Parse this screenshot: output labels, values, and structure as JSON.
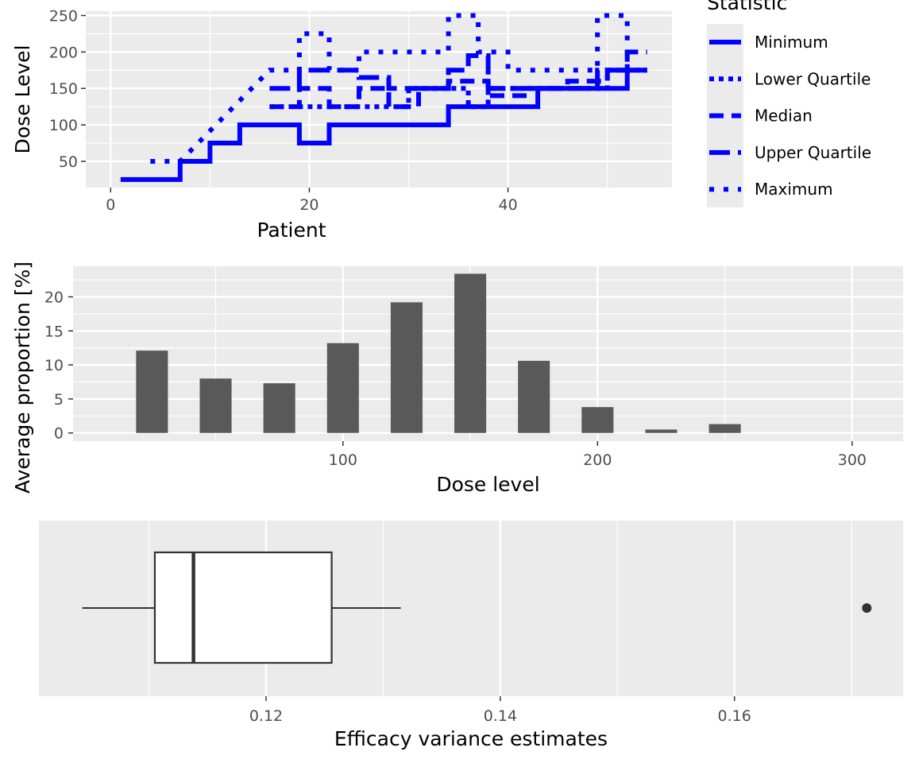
{
  "chart_data": [
    {
      "type": "line",
      "subtype": "step",
      "xlabel": "Patient",
      "ylabel": "Dose Level",
      "xlim": [
        -2.5,
        56.5
      ],
      "ylim": [
        14,
        256
      ],
      "x_ticks": [
        0,
        20,
        40
      ],
      "y_ticks": [
        50,
        100,
        150,
        200,
        250
      ],
      "legend": {
        "title": "Statistic",
        "placement": "right",
        "entries": [
          "Minimum",
          "Lower Quartile",
          "Median",
          "Upper Quartile",
          "Maximum"
        ]
      },
      "color": "#0000ff",
      "series": [
        {
          "name": "Minimum",
          "dash": "solid",
          "points": [
            [
              1,
              25
            ],
            [
              7,
              25
            ],
            [
              7,
              50
            ],
            [
              10,
              50
            ],
            [
              10,
              75
            ],
            [
              13,
              75
            ],
            [
              13,
              100
            ],
            [
              19,
              100
            ],
            [
              19,
              75
            ],
            [
              22,
              75
            ],
            [
              22,
              100
            ],
            [
              34,
              100
            ],
            [
              34,
              125
            ],
            [
              43,
              125
            ],
            [
              43,
              150
            ],
            [
              52,
              150
            ],
            [
              52,
              175
            ],
            [
              54,
              175
            ]
          ]
        },
        {
          "name": "Lower Quartile",
          "dash": "dotted-dense",
          "points": [
            [
              16,
              125
            ],
            [
              22,
              125
            ],
            [
              22,
              125
            ],
            [
              30,
              125
            ],
            [
              30,
              150
            ],
            [
              36,
              150
            ],
            [
              36,
              125
            ],
            [
              38,
              125
            ],
            [
              38,
              150
            ],
            [
              44,
              150
            ],
            [
              44,
              150
            ],
            [
              50,
              150
            ],
            [
              50,
              175
            ],
            [
              54,
              175
            ]
          ]
        },
        {
          "name": "Median",
          "dash": "dashed",
          "points": [
            [
              16,
              125
            ],
            [
              19,
              125
            ],
            [
              19,
              150
            ],
            [
              22,
              150
            ],
            [
              22,
              125
            ],
            [
              25,
              125
            ],
            [
              25,
              150
            ],
            [
              28,
              150
            ],
            [
              28,
              125
            ],
            [
              31,
              125
            ],
            [
              31,
              150
            ],
            [
              34,
              150
            ],
            [
              34,
              160
            ],
            [
              38,
              160
            ],
            [
              38,
              140
            ],
            [
              42,
              140
            ],
            [
              42,
              150
            ],
            [
              46,
              150
            ],
            [
              46,
              160
            ],
            [
              50,
              160
            ],
            [
              50,
              175
            ],
            [
              54,
              175
            ]
          ]
        },
        {
          "name": "Upper Quartile",
          "dash": "long-dash",
          "points": [
            [
              16,
              150
            ],
            [
              19,
              150
            ],
            [
              19,
              175
            ],
            [
              25,
              175
            ],
            [
              25,
              165
            ],
            [
              28,
              165
            ],
            [
              28,
              150
            ],
            [
              34,
              150
            ],
            [
              34,
              175
            ],
            [
              36,
              175
            ],
            [
              36,
              195
            ],
            [
              38,
              195
            ],
            [
              38,
              150
            ],
            [
              42,
              150
            ],
            [
              42,
              150
            ],
            [
              49,
              150
            ],
            [
              49,
              175
            ],
            [
              52,
              175
            ],
            [
              52,
              200
            ],
            [
              54,
              200
            ]
          ]
        },
        {
          "name": "Maximum",
          "dash": "dotted",
          "points": [
            [
              4,
              50
            ],
            [
              7,
              50
            ],
            [
              16,
              175
            ],
            [
              19,
              175
            ],
            [
              19,
              225
            ],
            [
              22,
              225
            ],
            [
              22,
              175
            ],
            [
              25,
              175
            ],
            [
              25,
              200
            ],
            [
              34,
              200
            ],
            [
              34,
              250
            ],
            [
              37,
              250
            ],
            [
              37,
              200
            ],
            [
              40,
              200
            ],
            [
              40,
              175
            ],
            [
              49,
              175
            ],
            [
              49,
              250
            ],
            [
              52,
              250
            ],
            [
              52,
              175
            ],
            [
              54,
              175
            ]
          ]
        }
      ]
    },
    {
      "type": "bar",
      "xlabel": "Dose level",
      "ylabel": "Average proportion [%]",
      "xlim": [
        -6,
        320
      ],
      "ylim": [
        -1.2,
        24.5
      ],
      "x_ticks": [
        100,
        200,
        300
      ],
      "y_ticks": [
        0,
        5,
        10,
        15,
        20
      ],
      "bar_width": 12.5,
      "bar_color": "#595959",
      "x": [
        25,
        50,
        75,
        100,
        125,
        150,
        175,
        200,
        225,
        250
      ],
      "values": [
        12.1,
        8.0,
        7.3,
        13.2,
        19.2,
        23.4,
        10.6,
        3.8,
        0.5,
        1.3
      ]
    },
    {
      "type": "box",
      "xlabel": "Efficacy variance estimates",
      "xlim": [
        0.1006,
        0.1744
      ],
      "x_ticks": [
        0.12,
        0.14,
        0.16
      ],
      "x_tick_labels": [
        "0.12",
        "0.14",
        "0.16"
      ],
      "box": {
        "whisker_low": 0.1043,
        "q1": 0.1105,
        "median": 0.1138,
        "q3": 0.1256,
        "whisker_high": 0.1315,
        "outliers": [
          0.1713
        ]
      }
    }
  ]
}
